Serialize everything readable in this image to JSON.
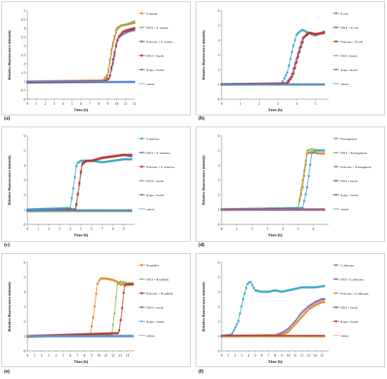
{
  "chart_data": [
    {
      "type": "line",
      "panel_label": "(a)",
      "xlabel": "Time [h]",
      "ylabel": "Relative fluorescence intensity",
      "xlim": [
        0,
        12
      ],
      "ylim": [
        0,
        5
      ],
      "xticks": [
        0,
        1,
        2,
        3,
        4,
        5,
        6,
        7,
        8,
        9,
        10,
        11,
        12
      ],
      "yticks": [
        0,
        0.5,
        1,
        1.5,
        2,
        2.5,
        3,
        3.5,
        4,
        4.5,
        5
      ],
      "grid": false,
      "legend_position": "right",
      "series": [
        {
          "name": "S.aureus",
          "color": "#e88a2e",
          "marker": "square",
          "x": [
            0,
            8.5,
            9,
            9.5,
            10,
            10.5,
            11,
            11.5,
            12
          ],
          "y": [
            1.0,
            1.05,
            1.4,
            3.0,
            4.0,
            4.15,
            4.2,
            4.25,
            4.3
          ]
        },
        {
          "name": "INCI + S. aureus",
          "color": "#8db04a",
          "marker": "triangle",
          "x": [
            0,
            8.5,
            9,
            9.5,
            10,
            10.5,
            11,
            11.5,
            12
          ],
          "y": [
            0.95,
            1.0,
            1.3,
            2.8,
            3.9,
            4.15,
            4.2,
            4.3,
            4.4
          ]
        },
        {
          "name": "Polcrom + S. aureus",
          "color": "#7a5cae",
          "marker": "x",
          "x": [
            0,
            8.7,
            9.2,
            9.7,
            10,
            10.5,
            11,
            11.5,
            12
          ],
          "y": [
            0.95,
            1.0,
            1.2,
            2.2,
            3.3,
            3.6,
            3.75,
            3.85,
            3.9
          ]
        },
        {
          "name": "INCI + broth",
          "color": "#c0392b",
          "marker": "square",
          "x": [
            0,
            8.7,
            9.2,
            9.7,
            10.2,
            10.7,
            11.2,
            12
          ],
          "y": [
            0.95,
            1.0,
            1.2,
            2.5,
            3.5,
            3.8,
            3.9,
            4.0
          ]
        },
        {
          "name": "drops + broth",
          "color": "#3b6fc0",
          "marker": "diamond",
          "x": [
            0,
            12
          ],
          "y": [
            0.95,
            0.97
          ]
        },
        {
          "name": "sensor",
          "color": "#6a9ed8",
          "marker": "none",
          "x": [
            0,
            12
          ],
          "y": [
            1.0,
            1.0
          ]
        }
      ]
    },
    {
      "type": "line",
      "panel_label": "(b)",
      "xlabel": "Time [h]",
      "ylabel": "Relative fluorescence intensity",
      "xlim": [
        0,
        5.7
      ],
      "ylim": [
        0,
        6
      ],
      "xticks": [
        0,
        1,
        2,
        3,
        4,
        5
      ],
      "yticks": [
        0,
        1,
        2,
        3,
        4,
        5,
        6
      ],
      "grid": false,
      "legend_position": "right",
      "series": [
        {
          "name": "E.coli",
          "color": "#3fa9c9",
          "marker": "square",
          "x": [
            0,
            3.2,
            3.5,
            3.8,
            4.0,
            4.3,
            4.6,
            5.0,
            5.5
          ],
          "y": [
            1.0,
            1.05,
            1.8,
            3.5,
            4.4,
            4.7,
            4.5,
            4.3,
            4.6
          ]
        },
        {
          "name": "INCI + E.coli",
          "color": "#7a5cae",
          "marker": "x",
          "x": [
            0,
            3.4,
            3.7,
            4.0,
            4.3,
            4.6,
            5.0,
            5.5
          ],
          "y": [
            1.0,
            1.05,
            1.5,
            2.8,
            4.1,
            4.5,
            4.4,
            4.5
          ]
        },
        {
          "name": "Polcrom + E.coli",
          "color": "#c0392b",
          "marker": "square",
          "x": [
            0,
            3.5,
            3.8,
            4.1,
            4.4,
            4.7,
            5.0,
            5.5
          ],
          "y": [
            1.0,
            1.05,
            1.6,
            3.0,
            4.2,
            4.5,
            4.4,
            4.5
          ]
        },
        {
          "name": "INCI +broth",
          "color": "#8db04a",
          "marker": "triangle",
          "x": [
            0,
            5.5
          ],
          "y": [
            1.0,
            1.0
          ]
        },
        {
          "name": "drops +broth",
          "color": "#3b6fc0",
          "marker": "diamond",
          "x": [
            0,
            5.5
          ],
          "y": [
            1.0,
            1.0
          ]
        },
        {
          "name": "sensor",
          "color": "#6a9ed8",
          "marker": "none",
          "x": [
            0,
            5.5
          ],
          "y": [
            1.0,
            1.0
          ]
        }
      ]
    },
    {
      "type": "line",
      "panel_label": "(c)",
      "xlabel": "Time [h]",
      "ylabel": "Relative fluorescence intensity",
      "xlim": [
        0,
        10
      ],
      "ylim": [
        0,
        6
      ],
      "xticks": [
        0,
        1,
        2,
        3,
        4,
        5,
        6,
        7,
        8,
        9
      ],
      "yticks": [
        0,
        1,
        2,
        3,
        4,
        5,
        6
      ],
      "grid": false,
      "legend_position": "right",
      "series": [
        {
          "name": "S.enterica",
          "color": "#3fa9c9",
          "marker": "square",
          "x": [
            0,
            4.0,
            4.3,
            4.6,
            5.0,
            6,
            7,
            8,
            9,
            9.8
          ],
          "y": [
            1.0,
            1.1,
            2.5,
            4.1,
            4.3,
            4.3,
            4.2,
            4.3,
            4.4,
            4.4
          ]
        },
        {
          "name": "INCI + S. enterica",
          "color": "#7a5cae",
          "marker": "x",
          "x": [
            0,
            4.5,
            4.8,
            5.1,
            5.5,
            6,
            7,
            8,
            9,
            9.8
          ],
          "y": [
            0.9,
            1.0,
            2.4,
            4.0,
            4.3,
            4.3,
            4.5,
            4.6,
            4.7,
            4.6
          ]
        },
        {
          "name": "Polcrom + S. enterica",
          "color": "#c0392b",
          "marker": "square",
          "x": [
            0,
            4.5,
            4.8,
            5.1,
            5.5,
            6,
            7,
            8,
            9,
            9.8
          ],
          "y": [
            0.9,
            1.0,
            2.5,
            4.1,
            4.3,
            4.3,
            4.5,
            4.6,
            4.7,
            4.7
          ]
        },
        {
          "name": "INCI + broth",
          "color": "#8db04a",
          "marker": "triangle",
          "x": [
            0,
            9.8
          ],
          "y": [
            0.9,
            0.9
          ]
        },
        {
          "name": "drops + broth",
          "color": "#3b6fc0",
          "marker": "diamond",
          "x": [
            0,
            9.8
          ],
          "y": [
            0.95,
            0.95
          ]
        },
        {
          "name": "sensor",
          "color": "#6a9ed8",
          "marker": "none",
          "x": [
            0,
            9.8
          ],
          "y": [
            0.95,
            0.95
          ]
        }
      ]
    },
    {
      "type": "line",
      "panel_label": "(d)",
      "xlabel": "Time [h]",
      "ylabel": "Relative fluorescence intensity",
      "xlim": [
        0,
        7
      ],
      "ylim": [
        0,
        6
      ],
      "xticks": [
        0,
        1,
        2,
        3,
        4,
        5,
        6
      ],
      "yticks": [
        0,
        1,
        2,
        3,
        4,
        5,
        6
      ],
      "grid": false,
      "legend_position": "right",
      "series": [
        {
          "name": "P.aeruginosa",
          "color": "#e88a2e",
          "marker": "square",
          "x": [
            0,
            5.0,
            5.3,
            5.6,
            5.9,
            6.3,
            6.7
          ],
          "y": [
            1.0,
            1.1,
            2.5,
            4.8,
            4.9,
            4.8,
            4.8
          ]
        },
        {
          "name": "INCI + P.aeruginosa",
          "color": "#8db04a",
          "marker": "triangle",
          "x": [
            0,
            5.0,
            5.3,
            5.6,
            5.9,
            6.3,
            6.7
          ],
          "y": [
            1.0,
            1.1,
            3.0,
            5.0,
            5.1,
            5.0,
            5.0
          ]
        },
        {
          "name": "Polcrom + P.aeruginosa",
          "color": "#3fa9c9",
          "marker": "square",
          "x": [
            0,
            5.3,
            5.6,
            5.9,
            6.2,
            6.5,
            6.7
          ],
          "y": [
            1.0,
            1.1,
            2.5,
            4.8,
            5.0,
            5.0,
            5.0
          ]
        },
        {
          "name": "INCI + broth",
          "color": "#7a5cae",
          "marker": "x",
          "x": [
            0,
            6.7
          ],
          "y": [
            1.0,
            1.0
          ]
        },
        {
          "name": "drops + broth",
          "color": "#c0392b",
          "marker": "diamond",
          "x": [
            0,
            6.7
          ],
          "y": [
            1.0,
            1.0
          ]
        },
        {
          "name": "sensor",
          "color": "#6a9ed8",
          "marker": "none",
          "x": [
            0,
            6.7
          ],
          "y": [
            1.0,
            1.0
          ]
        }
      ]
    },
    {
      "type": "line",
      "panel_label": "(e)",
      "xlabel": "Time [h]",
      "ylabel": "Relative fluorescence intensity",
      "xlim": [
        0,
        15
      ],
      "ylim": [
        0,
        6
      ],
      "xticks": [
        0,
        1,
        2,
        3,
        4,
        5,
        6,
        7,
        8,
        9,
        10,
        11,
        12,
        13,
        14
      ],
      "yticks": [
        0,
        1,
        2,
        3,
        4,
        5,
        6
      ],
      "grid": false,
      "legend_position": "right",
      "series": [
        {
          "name": "B.subtilis",
          "color": "#e88a2e",
          "marker": "square",
          "x": [
            0,
            8.8,
            9.3,
            9.8,
            10.2,
            11,
            12,
            12.5,
            13,
            14,
            14.8
          ],
          "y": [
            0.95,
            1.1,
            2.5,
            4.5,
            4.9,
            4.9,
            4.8,
            4.7,
            4.5,
            4.5,
            4.5
          ]
        },
        {
          "name": "INCI + B.subtilis",
          "color": "#8db04a",
          "marker": "triangle",
          "x": [
            0,
            11.8,
            12.2,
            12.6,
            13,
            14,
            14.8
          ],
          "y": [
            1.0,
            1.1,
            2.5,
            4.5,
            4.7,
            4.6,
            4.6
          ]
        },
        {
          "name": "Polcrom + B.subtilis",
          "color": "#c0392b",
          "marker": "square",
          "x": [
            0,
            12.8,
            13.2,
            13.6,
            14,
            14.8
          ],
          "y": [
            1.0,
            1.2,
            2.5,
            4.4,
            4.5,
            4.5
          ]
        },
        {
          "name": "INCI + broth",
          "color": "#7a5cae",
          "marker": "x",
          "x": [
            0,
            14.8
          ],
          "y": [
            1.0,
            1.0
          ]
        },
        {
          "name": "drops + broth",
          "color": "#3fa9c9",
          "marker": "diamond",
          "x": [
            0,
            14.8
          ],
          "y": [
            1.0,
            1.0
          ]
        },
        {
          "name": "sensor",
          "color": "#6a9ed8",
          "marker": "none",
          "x": [
            0,
            14.8
          ],
          "y": [
            1.0,
            1.0
          ]
        }
      ]
    },
    {
      "type": "line",
      "panel_label": "(f)",
      "xlabel": "Time [h]",
      "ylabel": "Relative fluorescence intensity",
      "xlim": [
        0,
        16
      ],
      "ylim": [
        0,
        6
      ],
      "xticks": [
        0,
        1,
        2,
        3,
        4,
        5,
        6,
        7,
        8,
        9,
        10,
        11,
        12,
        13,
        14,
        15
      ],
      "yticks": [
        0,
        1,
        2,
        3,
        4,
        5,
        6
      ],
      "grid": false,
      "legend_position": "right",
      "series": [
        {
          "name": "C.albicans",
          "color": "#3fa9c9",
          "marker": "square",
          "x": [
            0,
            1.5,
            2.5,
            3.2,
            3.8,
            4.3,
            5,
            6,
            7,
            8,
            9,
            10,
            11,
            12,
            13,
            14,
            15.5
          ],
          "y": [
            1.0,
            1.1,
            2.0,
            3.5,
            4.5,
            4.7,
            4.1,
            4.0,
            4.0,
            4.1,
            4.0,
            4.1,
            4.2,
            4.3,
            4.3,
            4.3,
            4.4
          ]
        },
        {
          "name": "INCI +C.albicans",
          "color": "#7a5cae",
          "marker": "x",
          "x": [
            0,
            8,
            9,
            10,
            11,
            12,
            13,
            14,
            15,
            15.5
          ],
          "y": [
            1.0,
            1.05,
            1.2,
            1.5,
            2.0,
            2.6,
            3.0,
            3.3,
            3.5,
            3.5
          ]
        },
        {
          "name": "Polcrom + C.albicans",
          "color": "#e88a2e",
          "marker": "square",
          "x": [
            0,
            9,
            10,
            11,
            12,
            13,
            14,
            15,
            15.5
          ],
          "y": [
            1.0,
            1.05,
            1.3,
            1.8,
            2.3,
            2.8,
            3.1,
            3.3,
            3.3
          ]
        },
        {
          "name": "INCI + broth",
          "color": "#1f6f8b",
          "marker": "diamond",
          "x": [
            0,
            15.5
          ],
          "y": [
            1.0,
            1.0
          ]
        },
        {
          "name": "drops + broth",
          "color": "#c0392b",
          "marker": "square",
          "x": [
            0,
            15.5
          ],
          "y": [
            1.0,
            1.0
          ]
        },
        {
          "name": "sensor",
          "color": "#e8b04a",
          "marker": "none",
          "x": [
            0,
            15.5
          ],
          "y": [
            0.95,
            0.95
          ]
        }
      ]
    }
  ]
}
